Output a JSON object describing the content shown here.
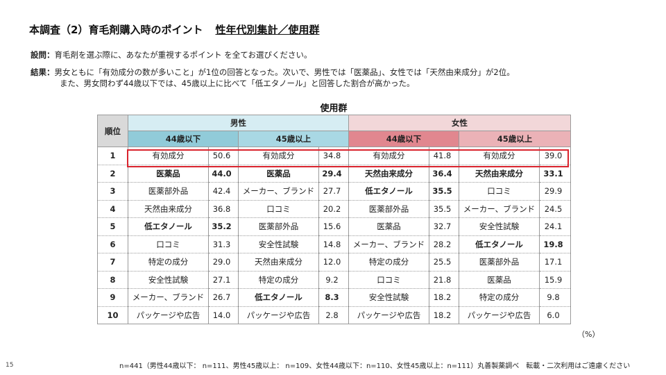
{
  "header": {
    "title": "本調査（2）育毛剤購入時のポイント",
    "subtitle": "性年代別集計／使用群"
  },
  "question": {
    "label": "設問：",
    "text": "育毛剤を選ぶ際に、あなたが重視するポイント を全てお選びください。"
  },
  "result": {
    "label": "結果：",
    "line1": "男女ともに「有効成分の数が多いこと」が1位の回答となった。次いで、男性では「医薬品」、女性では「天然由来成分」が2位。",
    "line2": "また、男女問わず44歳以下では、45歳以上に比べて「低エタノール」と回答した割合が高かった。"
  },
  "table": {
    "caption": "使用群",
    "rank_header": "順位",
    "male_header": "男性",
    "female_header": "女性",
    "groups": [
      "44歳以下",
      "45歳以上",
      "44歳以下",
      "45歳以上"
    ],
    "rows": [
      {
        "rank": "1",
        "cells": [
          {
            "item": "有効成分",
            "value": "50.6"
          },
          {
            "item": "有効成分",
            "value": "34.8"
          },
          {
            "item": "有効成分",
            "value": "41.8"
          },
          {
            "item": "有効成分",
            "value": "39.0"
          }
        ]
      },
      {
        "rank": "2",
        "cells": [
          {
            "item": "医薬品",
            "value": "44.0",
            "bold": true
          },
          {
            "item": "医薬品",
            "value": "29.4",
            "bold": true
          },
          {
            "item": "天然由来成分",
            "value": "36.4",
            "bold": true
          },
          {
            "item": "天然由来成分",
            "value": "33.1",
            "bold": true
          }
        ]
      },
      {
        "rank": "3",
        "cells": [
          {
            "item": "医薬部外品",
            "value": "42.4"
          },
          {
            "item": "メーカー、ブランド",
            "value": "27.7"
          },
          {
            "item": "低エタノール",
            "value": "35.5",
            "bold": true
          },
          {
            "item": "口コミ",
            "value": "29.9"
          }
        ]
      },
      {
        "rank": "4",
        "cells": [
          {
            "item": "天然由来成分",
            "value": "36.8"
          },
          {
            "item": "口コミ",
            "value": "20.2"
          },
          {
            "item": "医薬部外品",
            "value": "35.5"
          },
          {
            "item": "メーカー、ブランド",
            "value": "24.5"
          }
        ]
      },
      {
        "rank": "5",
        "cells": [
          {
            "item": "低エタノール",
            "value": "35.2",
            "bold": true
          },
          {
            "item": "医薬部外品",
            "value": "15.6"
          },
          {
            "item": "医薬品",
            "value": "32.7"
          },
          {
            "item": "安全性試験",
            "value": "24.1"
          }
        ]
      },
      {
        "rank": "6",
        "cells": [
          {
            "item": "口コミ",
            "value": "31.3"
          },
          {
            "item": "安全性試験",
            "value": "14.8"
          },
          {
            "item": "メーカー、ブランド",
            "value": "28.2"
          },
          {
            "item": "低エタノール",
            "value": "19.8",
            "bold": true
          }
        ]
      },
      {
        "rank": "7",
        "cells": [
          {
            "item": "特定の成分",
            "value": "29.0"
          },
          {
            "item": "天然由来成分",
            "value": "12.0"
          },
          {
            "item": "特定の成分",
            "value": "25.5"
          },
          {
            "item": "医薬部外品",
            "value": "17.1"
          }
        ]
      },
      {
        "rank": "8",
        "cells": [
          {
            "item": "安全性試験",
            "value": "27.1"
          },
          {
            "item": "特定の成分",
            "value": "9.2"
          },
          {
            "item": "口コミ",
            "value": "21.8"
          },
          {
            "item": "医薬品",
            "value": "15.9"
          }
        ]
      },
      {
        "rank": "9",
        "cells": [
          {
            "item": "メーカー、ブランド",
            "value": "26.7"
          },
          {
            "item": "低エタノール",
            "value": "8.3",
            "bold": true
          },
          {
            "item": "安全性試験",
            "value": "18.2"
          },
          {
            "item": "特定の成分",
            "value": "9.8"
          }
        ]
      },
      {
        "rank": "10",
        "cells": [
          {
            "item": "パッケージや広告",
            "value": "14.0"
          },
          {
            "item": "パッケージや広告",
            "value": "2.8"
          },
          {
            "item": "パッケージや広告",
            "value": "18.2"
          },
          {
            "item": "パッケージや広告",
            "value": "6.0"
          }
        ]
      }
    ],
    "unit": "（%）"
  },
  "footer": {
    "page_number": "15",
    "note": "n=441（男性44歳以下： n=111、男性45歳以上： n=109、女性44歳以下：n=110、女性45歳以上：n=111）丸善製薬調べ　転載・二次利用はご遠慮ください"
  },
  "colors": {
    "male_header": "#d6edf3",
    "male_44": "#91cbd9",
    "male_45": "#a9d8e4",
    "female_header": "#f2d7d9",
    "female_44": "#e1878f",
    "female_45": "#ebb2b7",
    "highlight_border": "#d9232d"
  }
}
